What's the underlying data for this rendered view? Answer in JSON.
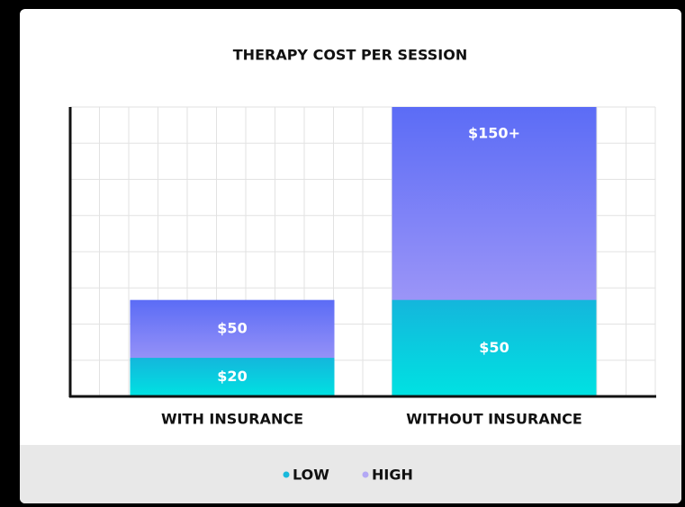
{
  "chart_data": {
    "type": "bar",
    "title": "THERAPY COST PER SESSION",
    "categories": [
      "WITH INSURANCE",
      "WITHOUT INSURANCE"
    ],
    "series": [
      {
        "name": "LOW",
        "color": "#18b9dc",
        "values": [
          20,
          50
        ],
        "value_labels": [
          "$20",
          "$50"
        ]
      },
      {
        "name": "HIGH",
        "color": "#b3a8f5",
        "values": [
          50,
          150
        ],
        "value_labels": [
          "$50",
          "$150+"
        ]
      }
    ],
    "ylim": [
      0,
      150
    ],
    "grid": true,
    "legend": "bottom"
  }
}
